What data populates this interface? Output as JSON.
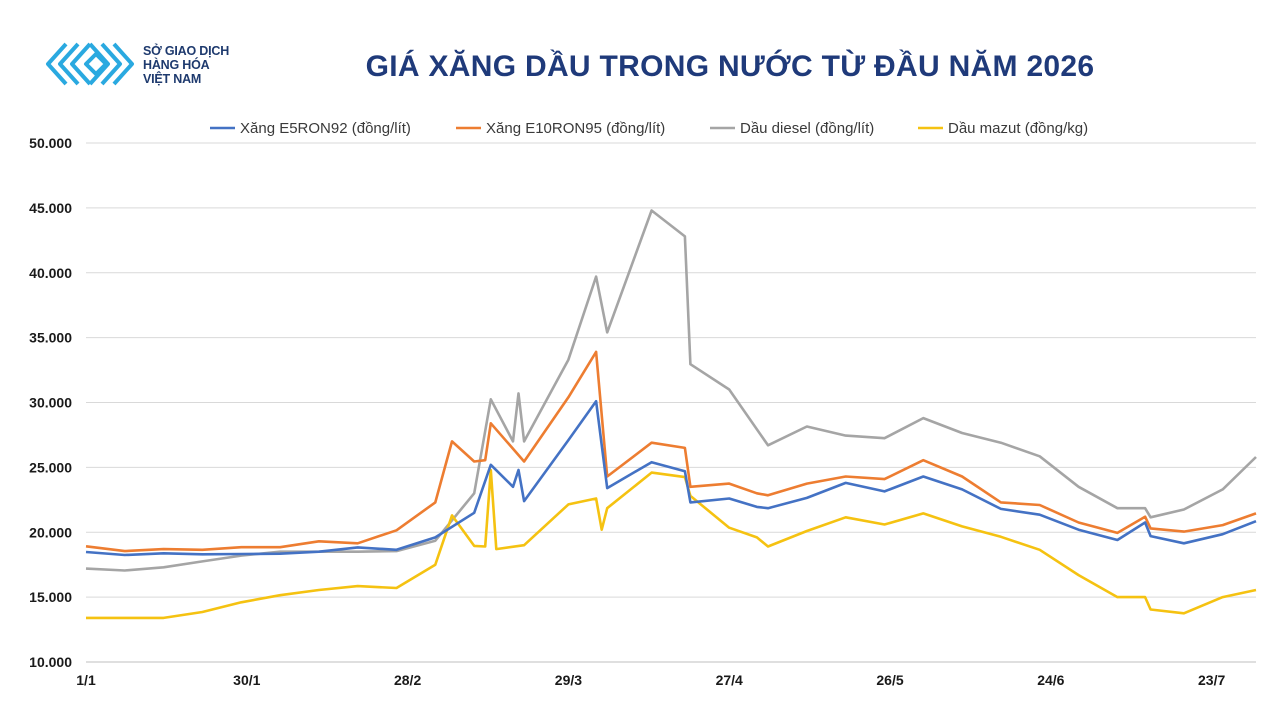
{
  "logo": {
    "line1": "SỞ GIAO DỊCH",
    "line2": "HÀNG HÓA",
    "line3": "VIỆT NAM",
    "color": "#1e3a6e",
    "accent": "#2aa9e0"
  },
  "chart_data": {
    "type": "line",
    "title": "GIÁ XĂNG DẦU TRONG NƯỚC TỪ ĐẦU NĂM 2026",
    "xlabel": "",
    "ylabel": "",
    "ylim": [
      10000,
      50000
    ],
    "yticks": [
      "10.000",
      "15.000",
      "20.000",
      "25.000",
      "30.000",
      "35.000",
      "40.000",
      "45.000",
      "50.000"
    ],
    "xticks": [
      "1/1",
      "30/1",
      "28/2",
      "29/3",
      "27/4",
      "26/5",
      "24/6",
      "23/7"
    ],
    "xlim": [
      0,
      203
    ],
    "grid": "horizontal",
    "legend_position": "top",
    "series": [
      {
        "name": "Xăng E5RON92 (đồng/lít)",
        "color": "#4472c4",
        "points": [
          [
            0,
            18480
          ],
          [
            7,
            18250
          ],
          [
            14,
            18380
          ],
          [
            21,
            18300
          ],
          [
            28,
            18320
          ],
          [
            35,
            18350
          ],
          [
            42,
            18500
          ],
          [
            49,
            18830
          ],
          [
            56,
            18650
          ],
          [
            63,
            19600
          ],
          [
            70,
            21500
          ],
          [
            73,
            25200
          ],
          [
            77,
            23500
          ],
          [
            78,
            24800
          ],
          [
            79,
            22400
          ],
          [
            87,
            27100
          ],
          [
            92,
            30100
          ],
          [
            94,
            23400
          ],
          [
            102,
            25400
          ],
          [
            108,
            24700
          ],
          [
            109,
            22300
          ],
          [
            116,
            22600
          ],
          [
            121,
            21950
          ],
          [
            123,
            21850
          ],
          [
            130,
            22650
          ],
          [
            137,
            23800
          ],
          [
            144,
            23150
          ],
          [
            151,
            24300
          ],
          [
            158,
            23300
          ],
          [
            165,
            21800
          ],
          [
            172,
            21350
          ],
          [
            179,
            20200
          ],
          [
            186,
            19400
          ],
          [
            191,
            20750
          ],
          [
            192,
            19700
          ],
          [
            198,
            19150
          ],
          [
            205,
            19850
          ],
          [
            211,
            20850
          ]
        ]
      },
      {
        "name": "Xăng E10RON95 (đồng/lít)",
        "color": "#ed7d31",
        "points": [
          [
            0,
            18920
          ],
          [
            7,
            18550
          ],
          [
            14,
            18700
          ],
          [
            21,
            18650
          ],
          [
            28,
            18850
          ],
          [
            35,
            18850
          ],
          [
            42,
            19300
          ],
          [
            49,
            19150
          ],
          [
            56,
            20150
          ],
          [
            63,
            22300
          ],
          [
            66,
            27000
          ],
          [
            70,
            25450
          ],
          [
            72,
            25550
          ],
          [
            73,
            28400
          ],
          [
            79,
            25450
          ],
          [
            87,
            30400
          ],
          [
            92,
            33900
          ],
          [
            94,
            24300
          ],
          [
            102,
            26900
          ],
          [
            108,
            26500
          ],
          [
            109,
            23500
          ],
          [
            116,
            23750
          ],
          [
            121,
            23000
          ],
          [
            123,
            22850
          ],
          [
            130,
            23750
          ],
          [
            137,
            24300
          ],
          [
            144,
            24100
          ],
          [
            151,
            25550
          ],
          [
            158,
            24300
          ],
          [
            165,
            22300
          ],
          [
            172,
            22100
          ],
          [
            179,
            20750
          ],
          [
            186,
            19950
          ],
          [
            191,
            21200
          ],
          [
            192,
            20300
          ],
          [
            198,
            20050
          ],
          [
            205,
            20550
          ],
          [
            211,
            21450
          ]
        ]
      },
      {
        "name": "Dầu diesel (đồng/lít)",
        "color": "#a5a5a5",
        "points": [
          [
            0,
            17200
          ],
          [
            7,
            17050
          ],
          [
            14,
            17300
          ],
          [
            21,
            17750
          ],
          [
            28,
            18200
          ],
          [
            35,
            18500
          ],
          [
            42,
            18500
          ],
          [
            49,
            18500
          ],
          [
            56,
            18550
          ],
          [
            63,
            19350
          ],
          [
            70,
            23000
          ],
          [
            73,
            30250
          ],
          [
            77,
            27000
          ],
          [
            78,
            30700
          ],
          [
            79,
            27000
          ],
          [
            87,
            33300
          ],
          [
            92,
            39700
          ],
          [
            94,
            35400
          ],
          [
            102,
            44800
          ],
          [
            108,
            42800
          ],
          [
            109,
            32950
          ],
          [
            116,
            31000
          ],
          [
            123,
            26700
          ],
          [
            130,
            28150
          ],
          [
            137,
            27450
          ],
          [
            144,
            27250
          ],
          [
            151,
            28800
          ],
          [
            158,
            27650
          ],
          [
            165,
            26900
          ],
          [
            172,
            25850
          ],
          [
            179,
            23500
          ],
          [
            186,
            21850
          ],
          [
            191,
            21850
          ],
          [
            192,
            21150
          ],
          [
            198,
            21750
          ],
          [
            205,
            23300
          ],
          [
            211,
            25800
          ]
        ]
      },
      {
        "name": "Dầu mazut (đồng/kg)",
        "color": "#f5c211",
        "points": [
          [
            0,
            13400
          ],
          [
            7,
            13400
          ],
          [
            14,
            13400
          ],
          [
            21,
            13850
          ],
          [
            28,
            14600
          ],
          [
            35,
            15150
          ],
          [
            42,
            15550
          ],
          [
            49,
            15850
          ],
          [
            56,
            15700
          ],
          [
            63,
            17500
          ],
          [
            66,
            21300
          ],
          [
            70,
            18950
          ],
          [
            72,
            18900
          ],
          [
            73,
            24800
          ],
          [
            74,
            18700
          ],
          [
            79,
            19000
          ],
          [
            87,
            22150
          ],
          [
            92,
            22600
          ],
          [
            93,
            20200
          ],
          [
            94,
            21850
          ],
          [
            102,
            24600
          ],
          [
            108,
            24250
          ],
          [
            109,
            22800
          ],
          [
            116,
            20350
          ],
          [
            121,
            19600
          ],
          [
            123,
            18900
          ],
          [
            130,
            20100
          ],
          [
            137,
            21150
          ],
          [
            144,
            20600
          ],
          [
            151,
            21450
          ],
          [
            158,
            20450
          ],
          [
            165,
            19650
          ],
          [
            172,
            18650
          ],
          [
            179,
            16700
          ],
          [
            186,
            15000
          ],
          [
            191,
            15000
          ],
          [
            192,
            14050
          ],
          [
            198,
            13750
          ],
          [
            205,
            15000
          ],
          [
            211,
            15550
          ]
        ]
      }
    ]
  }
}
